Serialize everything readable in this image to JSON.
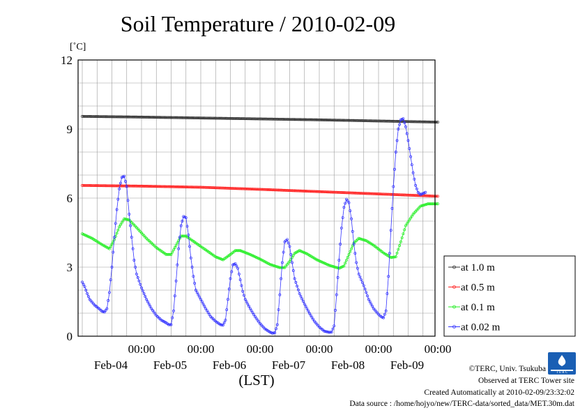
{
  "chart_data": {
    "type": "line",
    "title": "Soil Temperature / 2010-02-09",
    "ylabel": "[˚C]",
    "xlabel": "(LST)",
    "ylim": [
      0,
      12
    ],
    "y_ticks": [
      0,
      3,
      6,
      9,
      12
    ],
    "x_range_hours": [
      0,
      144
    ],
    "x_ticks": [
      {
        "time": "00:00",
        "date": "Feb-04"
      },
      {
        "time": "00:00",
        "date": "Feb-05"
      },
      {
        "time": "00:00",
        "date": "Feb-06"
      },
      {
        "time": "00:00",
        "date": "Feb-07"
      },
      {
        "time": "00:00",
        "date": "Feb-08"
      },
      {
        "time": "00:00",
        "date": "Feb-09"
      }
    ],
    "grid": true,
    "legend_position": "right",
    "series": [
      {
        "name": "at 1.0 m",
        "color": "#333333",
        "points": [
          [
            0,
            9.55
          ],
          [
            24,
            9.52
          ],
          [
            48,
            9.48
          ],
          [
            72,
            9.44
          ],
          [
            96,
            9.4
          ],
          [
            120,
            9.35
          ],
          [
            144,
            9.3
          ]
        ]
      },
      {
        "name": "at 0.5 m",
        "color": "#ff2020",
        "points": [
          [
            0,
            6.55
          ],
          [
            24,
            6.52
          ],
          [
            48,
            6.47
          ],
          [
            72,
            6.38
          ],
          [
            96,
            6.28
          ],
          [
            120,
            6.18
          ],
          [
            144,
            6.08
          ]
        ]
      },
      {
        "name": "at 0.1 m",
        "color": "#22ee22",
        "points": [
          [
            0,
            4.45
          ],
          [
            4,
            4.25
          ],
          [
            8,
            3.98
          ],
          [
            11,
            3.8
          ],
          [
            13,
            4.2
          ],
          [
            15,
            4.75
          ],
          [
            17,
            5.1
          ],
          [
            19,
            5.05
          ],
          [
            22,
            4.72
          ],
          [
            26,
            4.25
          ],
          [
            30,
            3.85
          ],
          [
            34,
            3.55
          ],
          [
            36,
            3.55
          ],
          [
            38,
            3.95
          ],
          [
            40,
            4.35
          ],
          [
            42,
            4.35
          ],
          [
            46,
            4.05
          ],
          [
            50,
            3.75
          ],
          [
            54,
            3.45
          ],
          [
            57,
            3.32
          ],
          [
            60,
            3.55
          ],
          [
            62,
            3.72
          ],
          [
            64,
            3.72
          ],
          [
            68,
            3.55
          ],
          [
            72,
            3.35
          ],
          [
            76,
            3.12
          ],
          [
            80,
            2.98
          ],
          [
            82,
            2.98
          ],
          [
            84,
            3.25
          ],
          [
            86,
            3.6
          ],
          [
            88,
            3.72
          ],
          [
            91,
            3.58
          ],
          [
            95,
            3.32
          ],
          [
            100,
            3.08
          ],
          [
            104,
            2.95
          ],
          [
            106,
            3.05
          ],
          [
            108,
            3.55
          ],
          [
            110,
            4.05
          ],
          [
            112,
            4.25
          ],
          [
            115,
            4.15
          ],
          [
            118,
            3.95
          ],
          [
            122,
            3.62
          ],
          [
            125,
            3.42
          ],
          [
            127,
            3.45
          ],
          [
            129,
            4.1
          ],
          [
            131,
            4.8
          ],
          [
            134,
            5.3
          ],
          [
            137,
            5.65
          ],
          [
            140,
            5.75
          ],
          [
            144,
            5.75
          ]
        ]
      },
      {
        "name": "at 0.02 m",
        "color": "#3333ff",
        "points": [
          [
            0,
            2.35
          ],
          [
            1,
            2.15
          ],
          [
            2,
            1.85
          ],
          [
            3,
            1.6
          ],
          [
            5,
            1.35
          ],
          [
            7,
            1.18
          ],
          [
            8,
            1.08
          ],
          [
            9,
            1.05
          ],
          [
            10,
            1.2
          ],
          [
            11,
            1.9
          ],
          [
            12,
            3.0
          ],
          [
            13,
            4.3
          ],
          [
            14,
            5.5
          ],
          [
            15,
            6.4
          ],
          [
            16,
            6.9
          ],
          [
            17,
            6.95
          ],
          [
            18,
            6.5
          ],
          [
            19,
            5.3
          ],
          [
            20,
            4.3
          ],
          [
            21,
            3.3
          ],
          [
            22,
            2.7
          ],
          [
            24,
            2.1
          ],
          [
            26,
            1.6
          ],
          [
            28,
            1.2
          ],
          [
            30,
            0.9
          ],
          [
            32,
            0.7
          ],
          [
            34,
            0.58
          ],
          [
            35,
            0.5
          ],
          [
            36,
            0.5
          ],
          [
            37,
            1.1
          ],
          [
            38,
            2.4
          ],
          [
            39,
            3.8
          ],
          [
            40,
            4.8
          ],
          [
            41,
            5.2
          ],
          [
            42,
            5.15
          ],
          [
            43,
            4.4
          ],
          [
            44,
            3.4
          ],
          [
            45,
            2.6
          ],
          [
            46,
            2.0
          ],
          [
            48,
            1.6
          ],
          [
            50,
            1.2
          ],
          [
            52,
            0.85
          ],
          [
            54,
            0.65
          ],
          [
            56,
            0.5
          ],
          [
            57,
            0.48
          ],
          [
            58,
            0.7
          ],
          [
            59,
            1.6
          ],
          [
            60,
            2.5
          ],
          [
            61,
            3.1
          ],
          [
            62,
            3.15
          ],
          [
            63,
            2.95
          ],
          [
            64,
            2.45
          ],
          [
            65,
            1.95
          ],
          [
            66,
            1.6
          ],
          [
            68,
            1.2
          ],
          [
            70,
            0.85
          ],
          [
            72,
            0.55
          ],
          [
            74,
            0.32
          ],
          [
            76,
            0.18
          ],
          [
            77,
            0.13
          ],
          [
            78,
            0.15
          ],
          [
            79,
            0.5
          ],
          [
            80,
            1.8
          ],
          [
            81,
            3.2
          ],
          [
            82,
            4.1
          ],
          [
            83,
            4.2
          ],
          [
            84,
            3.9
          ],
          [
            85,
            3.2
          ],
          [
            86,
            2.5
          ],
          [
            88,
            1.85
          ],
          [
            90,
            1.4
          ],
          [
            92,
            1.0
          ],
          [
            94,
            0.65
          ],
          [
            96,
            0.4
          ],
          [
            98,
            0.22
          ],
          [
            100,
            0.17
          ],
          [
            101,
            0.18
          ],
          [
            102,
            0.45
          ],
          [
            103,
            1.8
          ],
          [
            104,
            3.3
          ],
          [
            105,
            4.7
          ],
          [
            106,
            5.6
          ],
          [
            107,
            5.95
          ],
          [
            108,
            5.8
          ],
          [
            109,
            5.1
          ],
          [
            110,
            4.0
          ],
          [
            111,
            3.2
          ],
          [
            112,
            2.7
          ],
          [
            114,
            2.2
          ],
          [
            116,
            1.6
          ],
          [
            118,
            1.2
          ],
          [
            120,
            0.95
          ],
          [
            121,
            0.85
          ],
          [
            122,
            0.8
          ],
          [
            123,
            1.1
          ],
          [
            124,
            2.6
          ],
          [
            125,
            4.6
          ],
          [
            126,
            6.5
          ],
          [
            127,
            8.0
          ],
          [
            128,
            9.0
          ],
          [
            129,
            9.4
          ],
          [
            130,
            9.45
          ],
          [
            131,
            9.1
          ],
          [
            132,
            8.5
          ],
          [
            133,
            7.8
          ],
          [
            134,
            7.1
          ],
          [
            135,
            6.55
          ],
          [
            136,
            6.25
          ],
          [
            137,
            6.15
          ],
          [
            138,
            6.2
          ],
          [
            139,
            6.25
          ]
        ]
      }
    ]
  },
  "credits": {
    "copyright": "©TERC, Univ. Tsukuba",
    "site": "Observed at TERC Tower site",
    "created": "Created Automatically at 2010-02-09/23:32:02",
    "source": "Data source : /home/hojyo/new/TERC-data/sorted_data/MET.30m.dat"
  },
  "logo": {
    "text": "T E R C",
    "color": "#1a5fb4"
  }
}
